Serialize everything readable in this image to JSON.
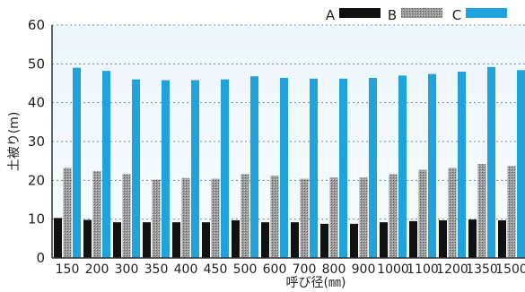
{
  "chart_data": {
    "type": "bar",
    "title": "",
    "xlabel": "呼び径(㎜)",
    "ylabel": "土被り(m)",
    "ylim": [
      0,
      60
    ],
    "yticks": [
      0,
      10,
      20,
      30,
      40,
      50,
      60
    ],
    "grid": true,
    "legend": "top-right",
    "categories": [
      "150",
      "200",
      "300",
      "350",
      "400",
      "450",
      "500",
      "600",
      "700",
      "800",
      "900",
      "1000",
      "1100",
      "1200",
      "1350",
      "1500"
    ],
    "series": [
      {
        "name": "A",
        "color": "#111111",
        "pattern": "solid",
        "values": [
          10.3,
          9.8,
          9.2,
          9.2,
          9.2,
          9.2,
          9.7,
          9.2,
          9.2,
          8.8,
          8.8,
          9.2,
          9.5,
          9.7,
          9.9,
          9.7
        ]
      },
      {
        "name": "B",
        "color": "#8a8a8a",
        "pattern": "hatch",
        "values": [
          23.2,
          22.4,
          21.6,
          20.2,
          20.6,
          20.4,
          21.6,
          21.2,
          20.4,
          20.7,
          20.7,
          21.6,
          22.7,
          23.2,
          24.2,
          23.7
        ]
      },
      {
        "name": "C",
        "color": "#1fa3dc",
        "pattern": "solid",
        "values": [
          49.0,
          48.2,
          46.0,
          45.8,
          45.8,
          46.0,
          46.8,
          46.4,
          46.2,
          46.2,
          46.4,
          47.0,
          47.4,
          48.0,
          49.2,
          48.4
        ]
      }
    ]
  }
}
